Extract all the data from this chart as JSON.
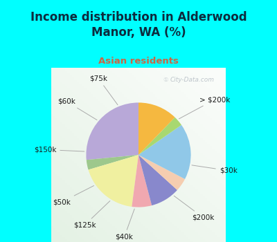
{
  "title": "Income distribution in Alderwood\nManor, WA (%)",
  "subtitle": "Asian residents",
  "title_color": "#0d2b3e",
  "subtitle_color": "#cc6644",
  "background_color": "#00ffff",
  "watermark": "City-Data.com",
  "labels": [
    "> $200k",
    "$30k",
    "$200k",
    "$40k",
    "$125k",
    "$50k",
    "$150k",
    "$60k",
    "$75k"
  ],
  "values": [
    26,
    3,
    18,
    6,
    9,
    4,
    17,
    3,
    12
  ],
  "colors": [
    "#b8a8d8",
    "#9dc88c",
    "#f0f0a0",
    "#f0a8b0",
    "#8888cc",
    "#f5cdb0",
    "#90c8e8",
    "#a8d870",
    "#f5b840"
  ],
  "startangle": 90
}
